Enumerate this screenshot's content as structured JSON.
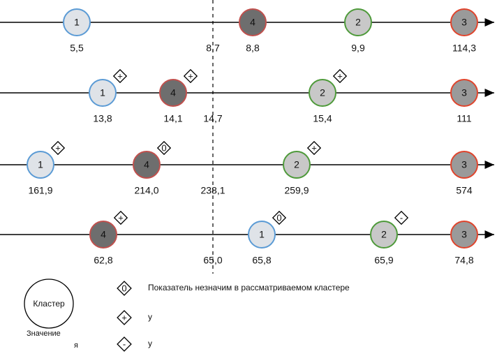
{
  "rows": [
    {
      "threshold": "8,7",
      "nodes": [
        {
          "label": "1",
          "value": "5,5",
          "stroke": "#5b9bd5",
          "fill": "#dfe3e8",
          "color": "#1f5f9f"
        },
        {
          "label": "4",
          "value": "8,8",
          "stroke": "#c0504d",
          "fill": "#6e6e6e",
          "color": "#e8742a"
        },
        {
          "label": "2",
          "value": "9,9",
          "stroke": "#4e9a3a",
          "fill": "#c8c8c8",
          "color": "#2f6b1f"
        },
        {
          "label": "3",
          "value": "114,3",
          "stroke": "#e0442c",
          "fill": "#9a9a9a",
          "color": "#8b1a10"
        }
      ]
    },
    {
      "threshold": "14,7",
      "nodes": [
        {
          "label": "1",
          "value": "13,8",
          "sign": "+",
          "stroke": "#5b9bd5",
          "fill": "#dfe3e8",
          "color": "#1f5f9f"
        },
        {
          "label": "4",
          "value": "14,1",
          "sign": "+",
          "stroke": "#c0504d",
          "fill": "#6e6e6e",
          "color": "#e8742a"
        },
        {
          "label": "2",
          "value": "15,4",
          "sign": "+",
          "stroke": "#4e9a3a",
          "fill": "#c8c8c8",
          "color": "#2f6b1f"
        },
        {
          "label": "3",
          "value": "111",
          "stroke": "#e0442c",
          "fill": "#9a9a9a",
          "color": "#8b1a10"
        }
      ]
    },
    {
      "threshold": "238,1",
      "nodes": [
        {
          "label": "1",
          "value": "161,9",
          "sign": "+",
          "stroke": "#5b9bd5",
          "fill": "#dfe3e8",
          "color": "#1f5f9f"
        },
        {
          "label": "4",
          "value": "214,0",
          "sign": "0",
          "stroke": "#c0504d",
          "fill": "#6e6e6e",
          "color": "#e8742a"
        },
        {
          "label": "2",
          "value": "259,9",
          "sign": "+",
          "stroke": "#4e9a3a",
          "fill": "#c8c8c8",
          "color": "#2f6b1f"
        },
        {
          "label": "3",
          "value": "574",
          "stroke": "#e0442c",
          "fill": "#9a9a9a",
          "color": "#8b1a10"
        }
      ]
    },
    {
      "threshold": "65,0",
      "nodes": [
        {
          "label": "4",
          "value": "62,8",
          "sign": "+",
          "stroke": "#c0504d",
          "fill": "#6e6e6e",
          "color": "#e8742a"
        },
        {
          "label": "1",
          "value": "65,8",
          "sign": "0",
          "stroke": "#5b9bd5",
          "fill": "#dfe3e8",
          "color": "#1f5f9f"
        },
        {
          "label": "2",
          "value": "65,9",
          "sign": "-",
          "stroke": "#4e9a3a",
          "fill": "#c8c8c8",
          "color": "#2f6b1f"
        },
        {
          "label": "3",
          "value": "74,8",
          "stroke": "#e0442c",
          "fill": "#9a9a9a",
          "color": "#8b1a10"
        }
      ]
    }
  ],
  "legend": {
    "cluster": "Кластер",
    "value": "Значение",
    "extra": "я",
    "items": [
      {
        "symbol": "0",
        "text": "Показатель незначим в рассматриваемом кластере"
      },
      {
        "symbol": "+",
        "text": "у"
      },
      {
        "symbol": "-",
        "text": "у"
      }
    ]
  }
}
